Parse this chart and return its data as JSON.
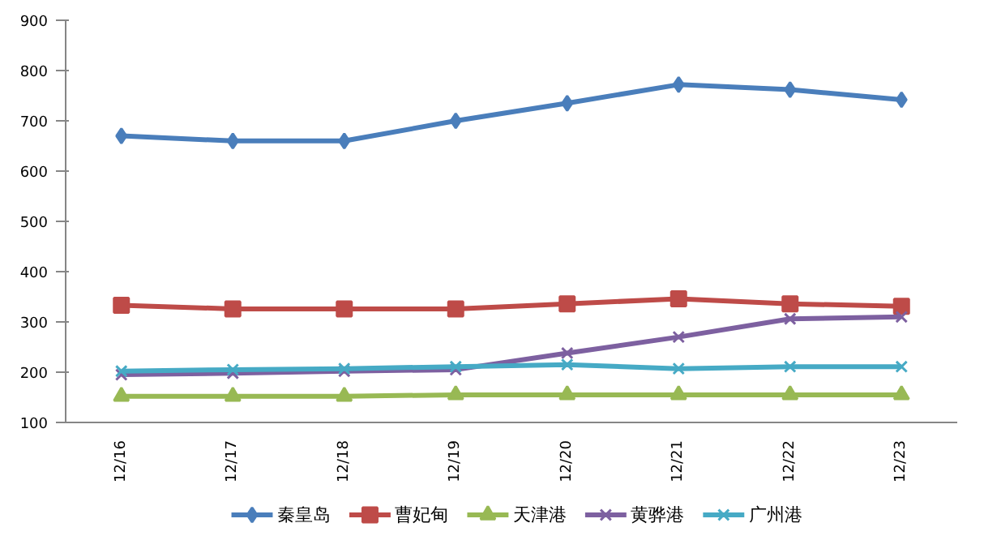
{
  "chart_data": {
    "type": "line",
    "categories": [
      "12/16",
      "12/17",
      "12/18",
      "12/19",
      "12/20",
      "12/21",
      "12/22",
      "12/23"
    ],
    "series": [
      {
        "name": "秦皇岛",
        "color": "#4a7ebb",
        "marker": "diamond",
        "values": [
          670,
          660,
          660,
          700,
          735,
          772,
          762,
          742
        ]
      },
      {
        "name": "曹妃甸",
        "color": "#be4b48",
        "marker": "square",
        "values": [
          333,
          326,
          326,
          326,
          336,
          346,
          336,
          331
        ]
      },
      {
        "name": "天津港",
        "color": "#98b954",
        "marker": "triangle",
        "values": [
          152,
          152,
          152,
          155,
          155,
          155,
          155,
          155
        ]
      },
      {
        "name": "黄骅港",
        "color": "#7d60a0",
        "marker": "cross",
        "values": [
          195,
          198,
          202,
          205,
          238,
          270,
          306,
          310
        ]
      },
      {
        "name": "广州港",
        "color": "#46aac5",
        "marker": "cross",
        "values": [
          202,
          205,
          207,
          211,
          215,
          207,
          211,
          211
        ]
      }
    ],
    "ylim": [
      100,
      900
    ],
    "yticks": [
      100,
      200,
      300,
      400,
      500,
      600,
      700,
      800,
      900
    ],
    "grid": false,
    "legend": "bottom",
    "line_style": "solid"
  }
}
